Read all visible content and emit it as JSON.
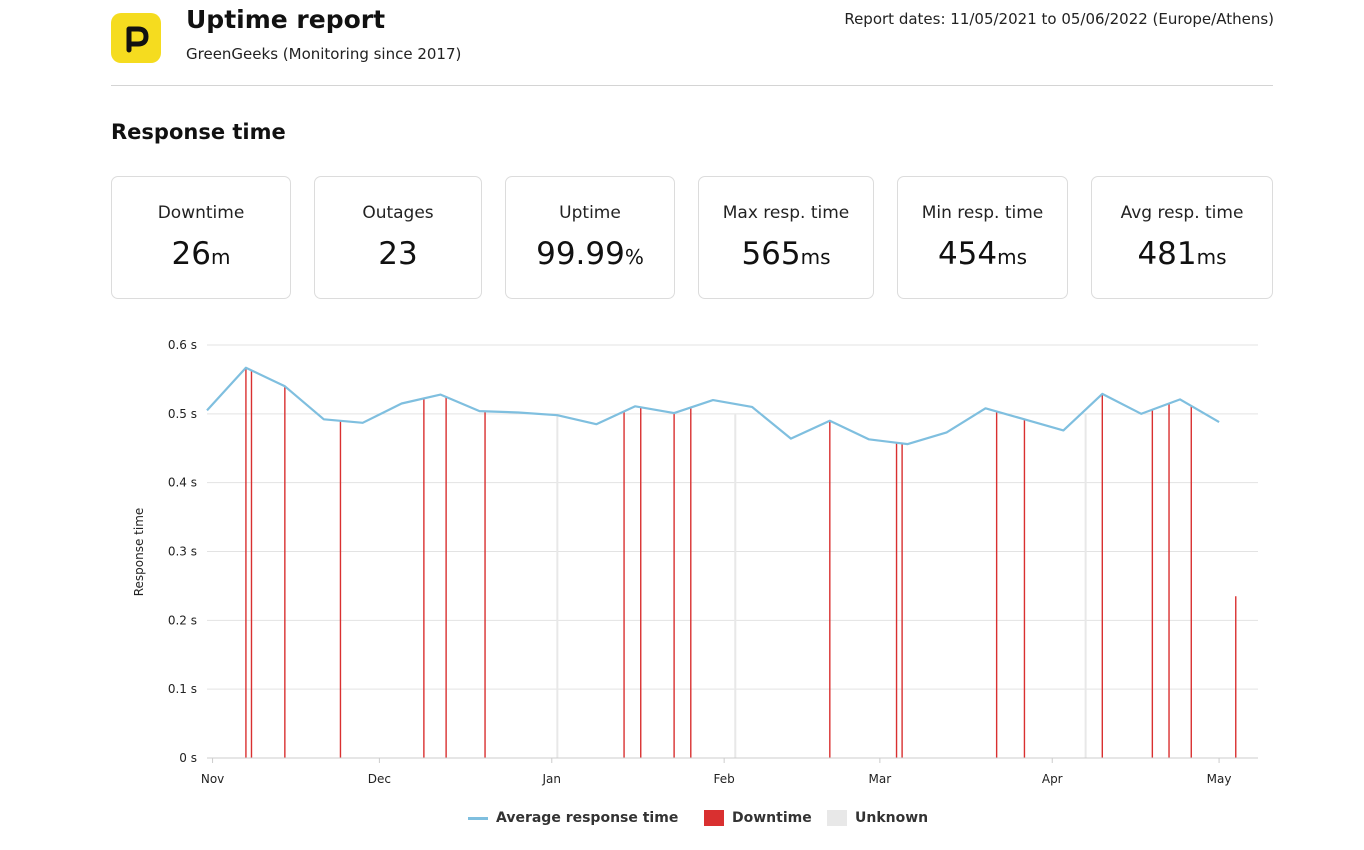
{
  "header": {
    "title": "Uptime report",
    "subtitle": "GreenGeeks (Monitoring since 2017)",
    "dates": "Report dates: 11/05/2021 to 05/06/2022 (Europe/Athens)",
    "logo_icon": "p-letter-logo",
    "logo_color": "#f5dc1f"
  },
  "section_title": "Response time",
  "stats": [
    {
      "label": "Downtime",
      "value": "26",
      "unit": "m"
    },
    {
      "label": "Outages",
      "value": "23",
      "unit": ""
    },
    {
      "label": "Uptime",
      "value": "99.99",
      "unit": "%"
    },
    {
      "label": "Max resp. time",
      "value": "565",
      "unit": "ms"
    },
    {
      "label": "Min resp. time",
      "value": "454",
      "unit": "ms"
    },
    {
      "label": "Avg resp. time",
      "value": "481",
      "unit": "ms"
    }
  ],
  "legend": {
    "avg": "Average response time",
    "downtime": "Downtime",
    "unknown": "Unknown"
  },
  "chart_data": {
    "type": "line",
    "ylabel": "Response time",
    "xlabel": "",
    "ylim": [
      0,
      0.6
    ],
    "y_ticks": [
      "0 s",
      "0.1 s",
      "0.2 s",
      "0.3 s",
      "0.4 s",
      "0.5 s",
      "0.6 s"
    ],
    "x_ticks": [
      {
        "label": "Nov",
        "date": "2021-11-01"
      },
      {
        "label": "Dec",
        "date": "2021-12-01"
      },
      {
        "label": "Jan",
        "date": "2022-01-01"
      },
      {
        "label": "Feb",
        "date": "2022-02-01"
      },
      {
        "label": "Mar",
        "date": "2022-03-01"
      },
      {
        "label": "Apr",
        "date": "2022-04-01"
      },
      {
        "label": "May",
        "date": "2022-05-01"
      }
    ],
    "x_range": [
      "2021-10-31",
      "2022-05-08"
    ],
    "colors": {
      "line": "#7fbfdf",
      "downtime": "#d93030",
      "unknown": "#e8e8e8",
      "grid": "#e3e3e3"
    },
    "series": [
      {
        "name": "Average response time",
        "points": [
          [
            "2021-10-31",
            0.505
          ],
          [
            "2021-11-07",
            0.567
          ],
          [
            "2021-11-14",
            0.54
          ],
          [
            "2021-11-21",
            0.492
          ],
          [
            "2021-11-28",
            0.487
          ],
          [
            "2021-12-05",
            0.515
          ],
          [
            "2021-12-12",
            0.528
          ],
          [
            "2021-12-19",
            0.504
          ],
          [
            "2021-12-26",
            0.502
          ],
          [
            "2022-01-02",
            0.498
          ],
          [
            "2022-01-09",
            0.485
          ],
          [
            "2022-01-16",
            0.511
          ],
          [
            "2022-01-23",
            0.501
          ],
          [
            "2022-01-30",
            0.52
          ],
          [
            "2022-02-06",
            0.51
          ],
          [
            "2022-02-13",
            0.464
          ],
          [
            "2022-02-20",
            0.49
          ],
          [
            "2022-02-27",
            0.463
          ],
          [
            "2022-03-06",
            0.456
          ],
          [
            "2022-03-13",
            0.473
          ],
          [
            "2022-03-20",
            0.508
          ],
          [
            "2022-03-27",
            0.492
          ],
          [
            "2022-04-03",
            0.476
          ],
          [
            "2022-04-10",
            0.529
          ],
          [
            "2022-04-17",
            0.5
          ],
          [
            "2022-04-24",
            0.521
          ],
          [
            "2022-05-01",
            0.488
          ]
        ]
      },
      {
        "name": "Downtime",
        "dates": [
          "2021-11-07",
          "2021-11-08",
          "2021-11-14",
          "2021-11-24",
          "2021-12-09",
          "2021-12-13",
          "2021-12-20",
          "2022-01-14",
          "2022-01-17",
          "2022-01-23",
          "2022-01-26",
          "2022-02-20",
          "2022-03-04",
          "2022-03-05",
          "2022-03-22",
          "2022-03-27",
          "2022-04-10",
          "2022-04-19",
          "2022-04-22",
          "2022-04-26",
          "2022-05-04"
        ]
      },
      {
        "name": "Unknown",
        "dates": [
          "2022-01-02",
          "2022-02-03",
          "2022-04-07"
        ]
      }
    ],
    "grid": true,
    "legend_position": "bottom"
  }
}
